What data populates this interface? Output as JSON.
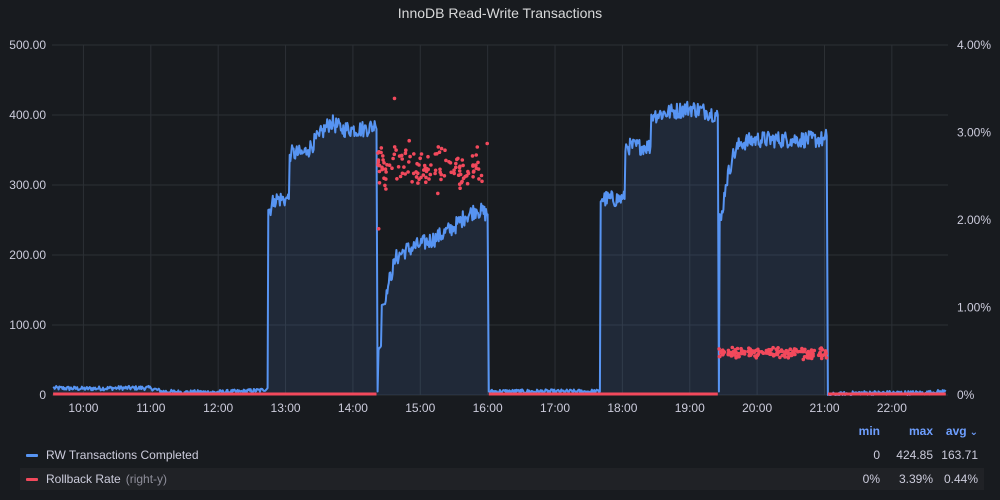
{
  "panel": {
    "title": "InnoDB Read-Write Transactions"
  },
  "legend": {
    "headers": {
      "min": "min",
      "max": "max",
      "avg": "avg"
    },
    "sort_icon": "chevron-down-icon",
    "rows": [
      {
        "name": "RW Transactions Completed",
        "axis_hint": "",
        "color": "#5794f2",
        "min": "0",
        "max": "424.85",
        "avg": "163.71"
      },
      {
        "name": "Rollback Rate",
        "axis_hint": "(right-y)",
        "color": "#f2495c",
        "min": "0%",
        "max": "3.39%",
        "avg": "0.44%"
      }
    ]
  },
  "chart_data": {
    "type": "line",
    "title": "InnoDB Read-Write Transactions",
    "x_ticks": [
      "10:00",
      "11:00",
      "12:00",
      "13:00",
      "14:00",
      "15:00",
      "16:00",
      "17:00",
      "18:00",
      "19:00",
      "20:00",
      "21:00",
      "22:00"
    ],
    "x_range": [
      "09:32",
      "22:50"
    ],
    "y_left": {
      "ticks": [
        "0",
        "100.00",
        "200.00",
        "300.00",
        "400.00",
        "500.00"
      ],
      "range": [
        0,
        500
      ]
    },
    "y_right": {
      "ticks": [
        "0%",
        "1.00%",
        "2.00%",
        "3.00%",
        "4.00%"
      ],
      "range": [
        0,
        4
      ]
    },
    "grid": true,
    "legend_position": "bottom",
    "series": [
      {
        "name": "RW Transactions Completed",
        "axis": "left",
        "style": "line-area",
        "color": "#5794f2",
        "points": [
          [
            "09:33",
            10
          ],
          [
            "10:00",
            9
          ],
          [
            "10:30",
            10
          ],
          [
            "11:00",
            10
          ],
          [
            "11:10",
            5
          ],
          [
            "11:30",
            4
          ],
          [
            "12:00",
            4
          ],
          [
            "12:20",
            5
          ],
          [
            "12:40",
            7
          ],
          [
            "12:44",
            10
          ],
          [
            "12:46",
            265
          ],
          [
            "12:50",
            280
          ],
          [
            "13:00",
            280
          ],
          [
            "13:03",
            280
          ],
          [
            "13:05",
            345
          ],
          [
            "13:15",
            345
          ],
          [
            "13:20",
            350
          ],
          [
            "13:30",
            370
          ],
          [
            "13:40",
            390
          ],
          [
            "13:50",
            380
          ],
          [
            "14:00",
            380
          ],
          [
            "14:10",
            380
          ],
          [
            "14:20",
            385
          ],
          [
            "14:21",
            380
          ],
          [
            "14:22",
            5
          ],
          [
            "14:25",
            70
          ],
          [
            "14:28",
            130
          ],
          [
            "14:32",
            160
          ],
          [
            "14:38",
            195
          ],
          [
            "14:45",
            205
          ],
          [
            "15:00",
            215
          ],
          [
            "15:15",
            225
          ],
          [
            "15:30",
            240
          ],
          [
            "15:40",
            255
          ],
          [
            "15:50",
            265
          ],
          [
            "16:00",
            258
          ],
          [
            "16:01",
            5
          ],
          [
            "16:30",
            5
          ],
          [
            "17:00",
            5
          ],
          [
            "17:30",
            5
          ],
          [
            "17:40",
            5
          ],
          [
            "17:42",
            280
          ],
          [
            "18:00",
            280
          ],
          [
            "18:02",
            280
          ],
          [
            "18:04",
            355
          ],
          [
            "18:20",
            355
          ],
          [
            "18:25",
            355
          ],
          [
            "18:28",
            400
          ],
          [
            "18:45",
            405
          ],
          [
            "19:00",
            410
          ],
          [
            "19:15",
            405
          ],
          [
            "19:25",
            400
          ],
          [
            "19:26",
            5
          ],
          [
            "19:28",
            250
          ],
          [
            "19:32",
            300
          ],
          [
            "19:38",
            340
          ],
          [
            "19:45",
            360
          ],
          [
            "20:00",
            365
          ],
          [
            "20:30",
            365
          ],
          [
            "21:00",
            365
          ],
          [
            "21:02",
            370
          ],
          [
            "21:03",
            0
          ],
          [
            "21:30",
            3
          ],
          [
            "22:00",
            3
          ],
          [
            "22:30",
            3
          ],
          [
            "22:48",
            5
          ]
        ]
      },
      {
        "name": "Rollback Rate",
        "axis": "right",
        "style": "line-and-points",
        "color": "#f2495c",
        "line_segments": [
          [
            [
              "09:33",
              0
            ],
            [
              "14:21",
              0
            ]
          ],
          [
            [
              "16:01",
              0
            ],
            [
              "19:25",
              0
            ]
          ],
          [
            [
              "21:03",
              0
            ],
            [
              "22:48",
              0
            ]
          ]
        ],
        "scatter_clusters": [
          {
            "x_range": [
              "14:22",
              "16:00"
            ],
            "y_center": 2.6,
            "y_spread": 0.35,
            "count": 130,
            "outliers": [
              [
                "14:37",
                3.39
              ],
              [
                "14:23",
                1.9
              ]
            ]
          },
          {
            "x_range": [
              "19:26",
              "21:02"
            ],
            "y_center": 0.48,
            "y_spread": 0.09,
            "count": 170,
            "outliers": []
          }
        ]
      }
    ]
  }
}
